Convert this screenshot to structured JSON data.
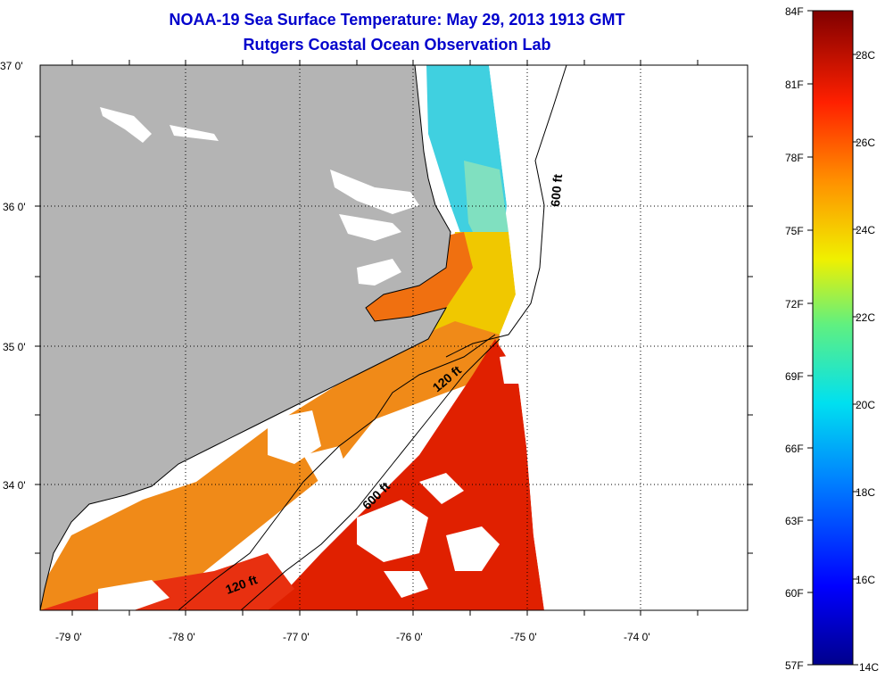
{
  "title": {
    "line1": "NOAA-19 Sea Surface Temperature:  May 29, 2013 1913 GMT",
    "line2": "Rutgers Coastal Ocean Observation Lab"
  },
  "map": {
    "lat_labels": [
      "37 0'",
      "36 0'",
      "35 0'",
      "34 0'"
    ],
    "lon_labels": [
      "-79 0'",
      "-78 0'",
      "-77 0'",
      "-76 0'",
      "-75 0'",
      "-74 0'"
    ],
    "contours": [
      {
        "label": "600 ft"
      },
      {
        "label": "120 ft"
      },
      {
        "label": "600 ft"
      },
      {
        "label": "120 ft"
      }
    ],
    "colors": {
      "land": "#b4b4b4",
      "cloud": "#ffffff",
      "warm": "#e02000",
      "orange": "#f07010",
      "yellow": "#f0d000",
      "cyan": "#40d0e0"
    }
  },
  "colorbar": {
    "f_labels": [
      "84F",
      "81F",
      "78F",
      "75F",
      "72F",
      "69F",
      "66F",
      "63F",
      "60F",
      "57F"
    ],
    "c_labels": [
      "28C",
      "26C",
      "24C",
      "22C",
      "20C",
      "18C",
      "16C",
      "14C"
    ],
    "range_f": [
      57,
      84
    ],
    "range_c": [
      14,
      29
    ]
  }
}
